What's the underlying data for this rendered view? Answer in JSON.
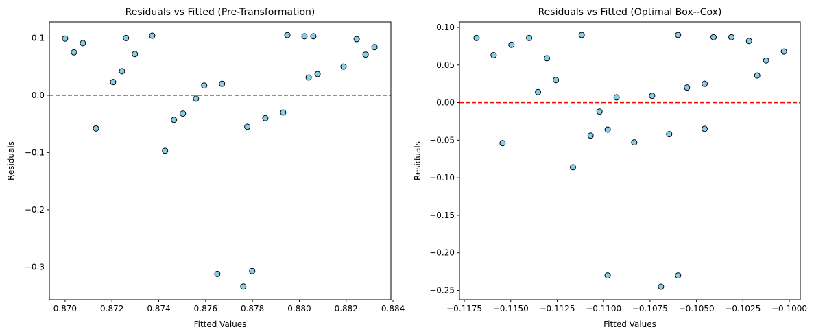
{
  "chart_data": [
    {
      "type": "scatter",
      "title": "Residuals vs Fitted (Pre-Transformation)",
      "x_label": "Fitted Values",
      "y_label": "Residuals",
      "series": [
        {
          "color": "#87ceeb",
          "edgecolor": "#000000",
          "x": [
            0.87,
            0.87038,
            0.87076,
            0.87132,
            0.87205,
            0.87243,
            0.8726,
            0.87298,
            0.87372,
            0.87427,
            0.87465,
            0.87503,
            0.87559,
            0.87594,
            0.8765,
            0.8767,
            0.87761,
            0.87778,
            0.87799,
            0.87855,
            0.87931,
            0.87949,
            0.88022,
            0.8804,
            0.8806,
            0.88078,
            0.88189,
            0.88245,
            0.88283,
            0.88321
          ],
          "values": [
            0.099,
            0.075,
            0.091,
            -0.058,
            0.023,
            0.042,
            0.1,
            0.072,
            0.104,
            -0.097,
            -0.043,
            -0.032,
            -0.006,
            0.017,
            -0.312,
            0.02,
            -0.334,
            -0.055,
            -0.307,
            -0.04,
            -0.03,
            0.105,
            0.103,
            0.031,
            0.103,
            0.037,
            0.05,
            0.098,
            0.071,
            0.084
          ]
        }
      ],
      "reference_line": {
        "value": 0,
        "color": "#ff0000"
      },
      "xlim": [
        0.86933,
        0.88391
      ],
      "ylim": [
        -0.357,
        0.128
      ],
      "xticks": [
        {
          "value": 0.87,
          "label": "0.870"
        },
        {
          "value": 0.872,
          "label": "0.872"
        },
        {
          "value": 0.874,
          "label": "0.874"
        },
        {
          "value": 0.876,
          "label": "0.876"
        },
        {
          "value": 0.878,
          "label": "0.878"
        },
        {
          "value": 0.88,
          "label": "0.880"
        },
        {
          "value": 0.882,
          "label": "0.882"
        },
        {
          "value": 0.884,
          "label": "0.884"
        }
      ],
      "yticks": [
        {
          "value": -0.3,
          "label": "−0.3"
        },
        {
          "value": -0.2,
          "label": "−0.2"
        },
        {
          "value": -0.1,
          "label": "−0.1"
        },
        {
          "value": 0,
          "label": "0.0"
        },
        {
          "value": 0.1,
          "label": "0.1"
        }
      ]
    },
    {
      "type": "scatter",
      "title": "Residuals vs Fitted (Optimal Box--Cox)",
      "x_label": "Fitted Values",
      "y_label": "Residuals",
      "series": [
        {
          "color": "#87ceeb",
          "edgecolor": "#000000",
          "x": [
            -0.11684,
            -0.11592,
            -0.11544,
            -0.11496,
            -0.11401,
            -0.11353,
            -0.11305,
            -0.11257,
            -0.11165,
            -0.11118,
            -0.1107,
            -0.11022,
            -0.10978,
            -0.10978,
            -0.1093,
            -0.10835,
            -0.10739,
            -0.10691,
            -0.10647,
            -0.10599,
            -0.10599,
            -0.10551,
            -0.10456,
            -0.10456,
            -0.10408,
            -0.10312,
            -0.10217,
            -0.10173,
            -0.10125,
            -0.10029
          ],
          "values": [
            0.086,
            0.063,
            -0.054,
            0.077,
            0.086,
            0.014,
            0.059,
            0.03,
            -0.086,
            0.09,
            -0.044,
            -0.012,
            -0.036,
            -0.23,
            0.007,
            -0.053,
            0.009,
            -0.245,
            -0.042,
            0.09,
            -0.23,
            0.02,
            0.025,
            -0.035,
            0.087,
            0.087,
            0.082,
            0.036,
            0.056,
            0.068
          ]
        }
      ],
      "reference_line": {
        "value": 0,
        "color": "#ff0000"
      },
      "xlim": [
        -0.11776,
        -0.09941
      ],
      "ylim": [
        -0.2623,
        0.1073
      ],
      "xticks": [
        {
          "value": -0.1175,
          "label": "−0.1175"
        },
        {
          "value": -0.115,
          "label": "−0.1150"
        },
        {
          "value": -0.1125,
          "label": "−0.1125"
        },
        {
          "value": -0.11,
          "label": "−0.1100"
        },
        {
          "value": -0.1075,
          "label": "−0.1075"
        },
        {
          "value": -0.105,
          "label": "−0.1050"
        },
        {
          "value": -0.1025,
          "label": "−0.1025"
        },
        {
          "value": -0.1,
          "label": "−0.1000"
        }
      ],
      "yticks": [
        {
          "value": -0.25,
          "label": "−0.25"
        },
        {
          "value": -0.2,
          "label": "−0.20"
        },
        {
          "value": -0.15,
          "label": "−0.15"
        },
        {
          "value": -0.1,
          "label": "−0.10"
        },
        {
          "value": -0.05,
          "label": "−0.05"
        },
        {
          "value": 0,
          "label": "0.00"
        },
        {
          "value": 0.05,
          "label": "0.05"
        },
        {
          "value": 0.1,
          "label": "0.10"
        }
      ]
    }
  ]
}
